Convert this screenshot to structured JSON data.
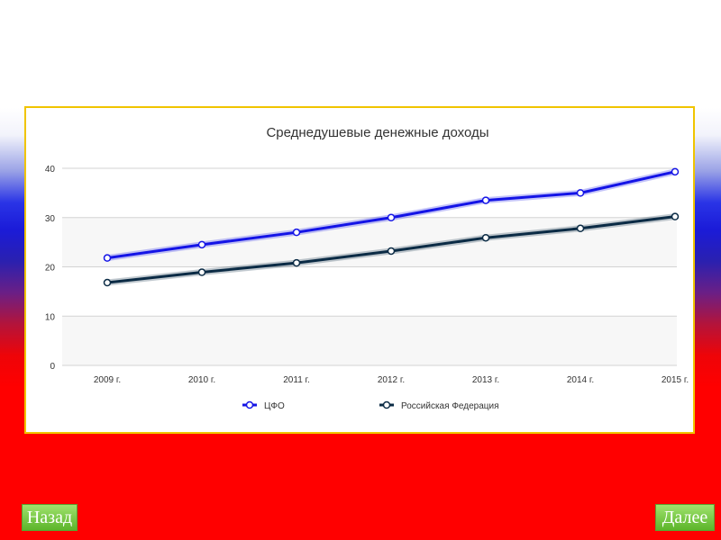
{
  "chart_data": {
    "type": "line",
    "title": "Среднедушевые денежные доходы",
    "categories": [
      "2009 г.",
      "2010 г.",
      "2011 г.",
      "2012 г.",
      "2013 г.",
      "2014 г.",
      "2015 г."
    ],
    "ylim": [
      0,
      40
    ],
    "yticks": [
      0,
      10,
      20,
      30,
      40
    ],
    "grid": true,
    "legend_position": "bottom",
    "series": [
      {
        "name": "ЦФО",
        "values": [
          21.8,
          24.5,
          27.0,
          30.0,
          33.5,
          35.0,
          39.3
        ],
        "color": "#1414e6"
      },
      {
        "name": "Российская Федерация",
        "values": [
          16.8,
          18.9,
          20.8,
          23.2,
          25.9,
          27.8,
          30.2
        ],
        "color": "#0b2b45"
      }
    ]
  },
  "nav": {
    "back_label": "Назад",
    "next_label": "Далее"
  }
}
